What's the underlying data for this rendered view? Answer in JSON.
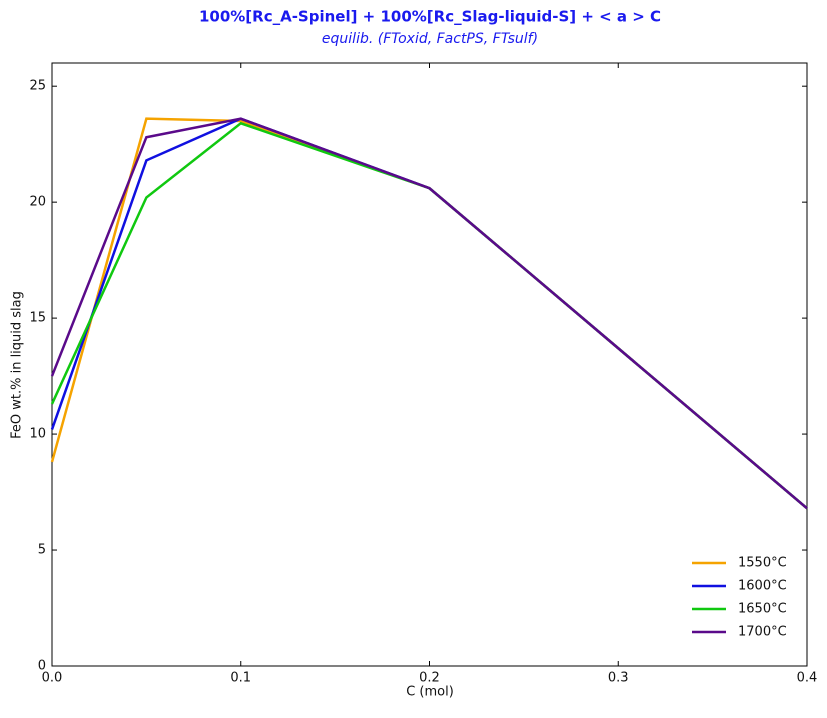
{
  "chart_data": {
    "type": "line",
    "title": "100%[Rc_A-Spinel] + 100%[Rc_Slag-liquid-S] + < a > C",
    "subtitle": "equilib. (FToxid, FactPS, FTsulf)",
    "x_label": "C (mol)",
    "y_label": "FeO wt.% in liquid slag",
    "x": [
      0,
      0.05,
      0.1,
      0.2,
      0.4
    ],
    "series": [
      {
        "name": "1550°C",
        "color": "#f5a300",
        "values": [
          8.8,
          23.6,
          23.5,
          20.6,
          6.8
        ]
      },
      {
        "name": "1600°C",
        "color": "#1010e0",
        "values": [
          10.2,
          21.8,
          23.6,
          20.6,
          6.8
        ]
      },
      {
        "name": "1650°C",
        "color": "#10c810",
        "values": [
          11.3,
          20.2,
          23.4,
          20.6,
          6.8
        ]
      },
      {
        "name": "1700°C",
        "color": "#5a0a8a",
        "values": [
          12.5,
          22.8,
          23.6,
          20.6,
          6.8
        ]
      }
    ],
    "xlim": [
      0,
      0.4
    ],
    "xticks": [
      {
        "value": 0,
        "label": "0.0"
      },
      0.1,
      0.2,
      0.3,
      0.4
    ],
    "ylim": [
      0,
      26
    ],
    "yticks": [
      0,
      5,
      10,
      15,
      20,
      25
    ],
    "legend": "lower right",
    "grid": false
  }
}
